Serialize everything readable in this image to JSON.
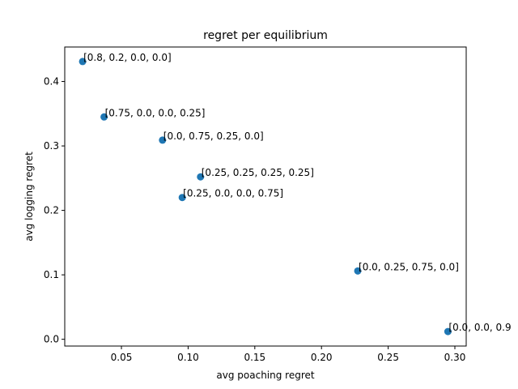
{
  "chart_data": {
    "type": "scatter",
    "title": "regret per equilibrium",
    "xlabel": "avg poaching regret",
    "ylabel": "avg logging regret",
    "xlim": [
      0.0075,
      0.3085
    ],
    "ylim": [
      -0.0105,
      0.4535
    ],
    "xticks": [
      0.05,
      0.1,
      0.15,
      0.2,
      0.25,
      0.3
    ],
    "xtick_labels": [
      "0.05",
      "0.10",
      "0.15",
      "0.20",
      "0.25",
      "0.30"
    ],
    "yticks": [
      0.0,
      0.1,
      0.2,
      0.3,
      0.4
    ],
    "ytick_labels": [
      "0.0",
      "0.1",
      "0.2",
      "0.3",
      "0.4"
    ],
    "grid": false,
    "point_color": "#1f77b4",
    "points": [
      {
        "x": 0.0209,
        "y": 0.431,
        "label": "[0.8, 0.2, 0.0, 0.0]"
      },
      {
        "x": 0.037,
        "y": 0.345,
        "label": "[0.75, 0.0, 0.0, 0.25]"
      },
      {
        "x": 0.0808,
        "y": 0.309,
        "label": "[0.0, 0.75, 0.25, 0.0]"
      },
      {
        "x": 0.1093,
        "y": 0.252,
        "label": "[0.25, 0.25, 0.25, 0.25]"
      },
      {
        "x": 0.0956,
        "y": 0.22,
        "label": "[0.25, 0.0, 0.0, 0.75]"
      },
      {
        "x": 0.2272,
        "y": 0.106,
        "label": "[0.0, 0.25, 0.75, 0.0]"
      },
      {
        "x": 0.2948,
        "y": 0.012,
        "label": "[0.0, 0.0, 0.9"
      }
    ]
  }
}
